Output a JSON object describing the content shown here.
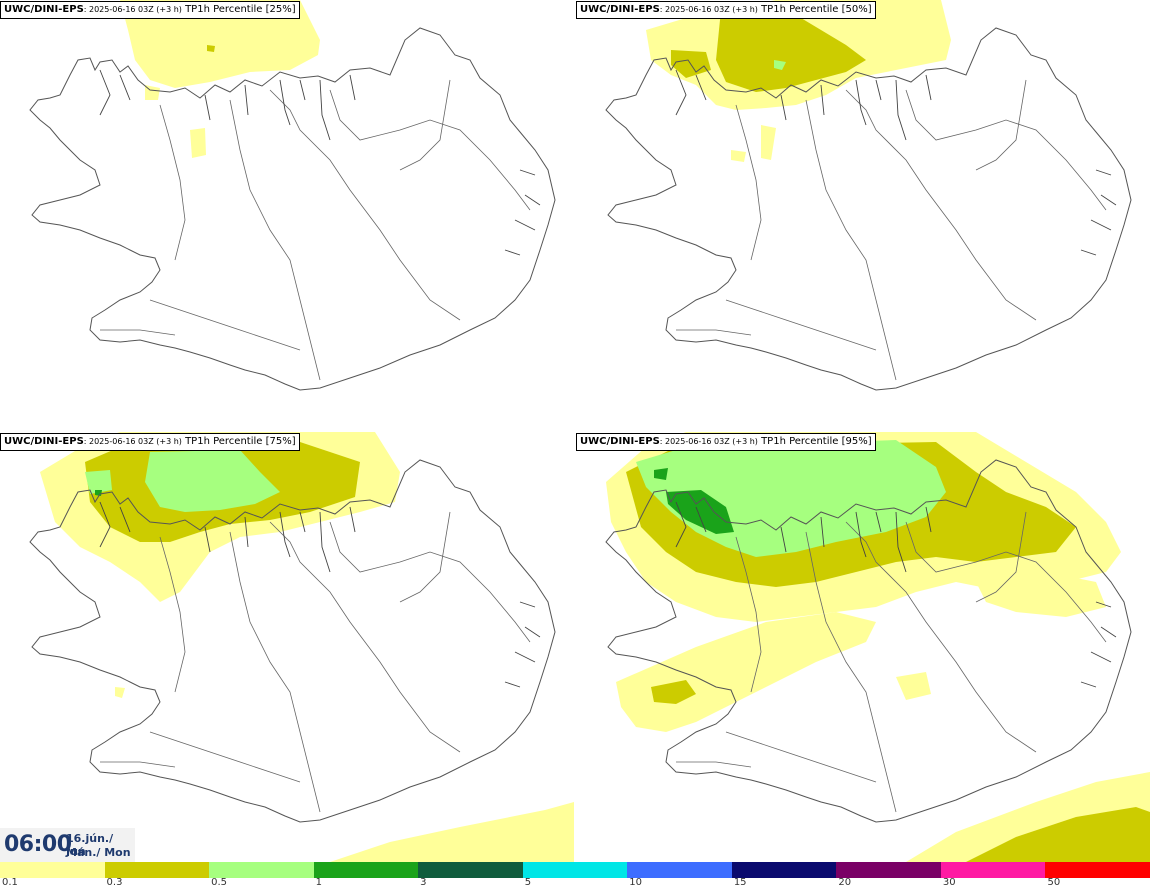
{
  "panels": [
    {
      "model": "UWC/DINI-EPS",
      "run": ": 2025-06-16 03Z (+3 h)",
      "field": " TP1h Percentile [25%]"
    },
    {
      "model": "UWC/DINI-EPS",
      "run": ": 2025-06-16 03Z (+3 h)",
      "field": " TP1h Percentile [50%]"
    },
    {
      "model": "UWC/DINI-EPS",
      "run": ": 2025-06-16 03Z (+3 h)",
      "field": " TP1h Percentile [75%]"
    },
    {
      "model": "UWC/DINI-EPS",
      "run": ": 2025-06-16 03Z (+3 h)",
      "field": " TP1h Percentile [95%]"
    }
  ],
  "valid_time": {
    "time": "06:00",
    "date_line1": "16.jún./ Jun",
    "date_line2": "Mán./ Mon"
  },
  "colorbar": {
    "colors": [
      "#ffff99",
      "#cccc00",
      "#a6ff7f",
      "#1aa31a",
      "#0f5c3d",
      "#00e6e6",
      "#3d6dff",
      "#0a0a6e",
      "#7a0066",
      "#ff1aa3",
      "#ff0000"
    ],
    "labels": [
      "0.1",
      "0.3",
      "0.5",
      "1",
      "3",
      "5",
      "10",
      "15",
      "20",
      "30",
      "50"
    ]
  },
  "colors": {
    "light_yellow": "#ffff99",
    "olive": "#cccc00",
    "light_green": "#a6ff7f",
    "green": "#1aa31a",
    "title_blue": "#1f3a6e"
  }
}
